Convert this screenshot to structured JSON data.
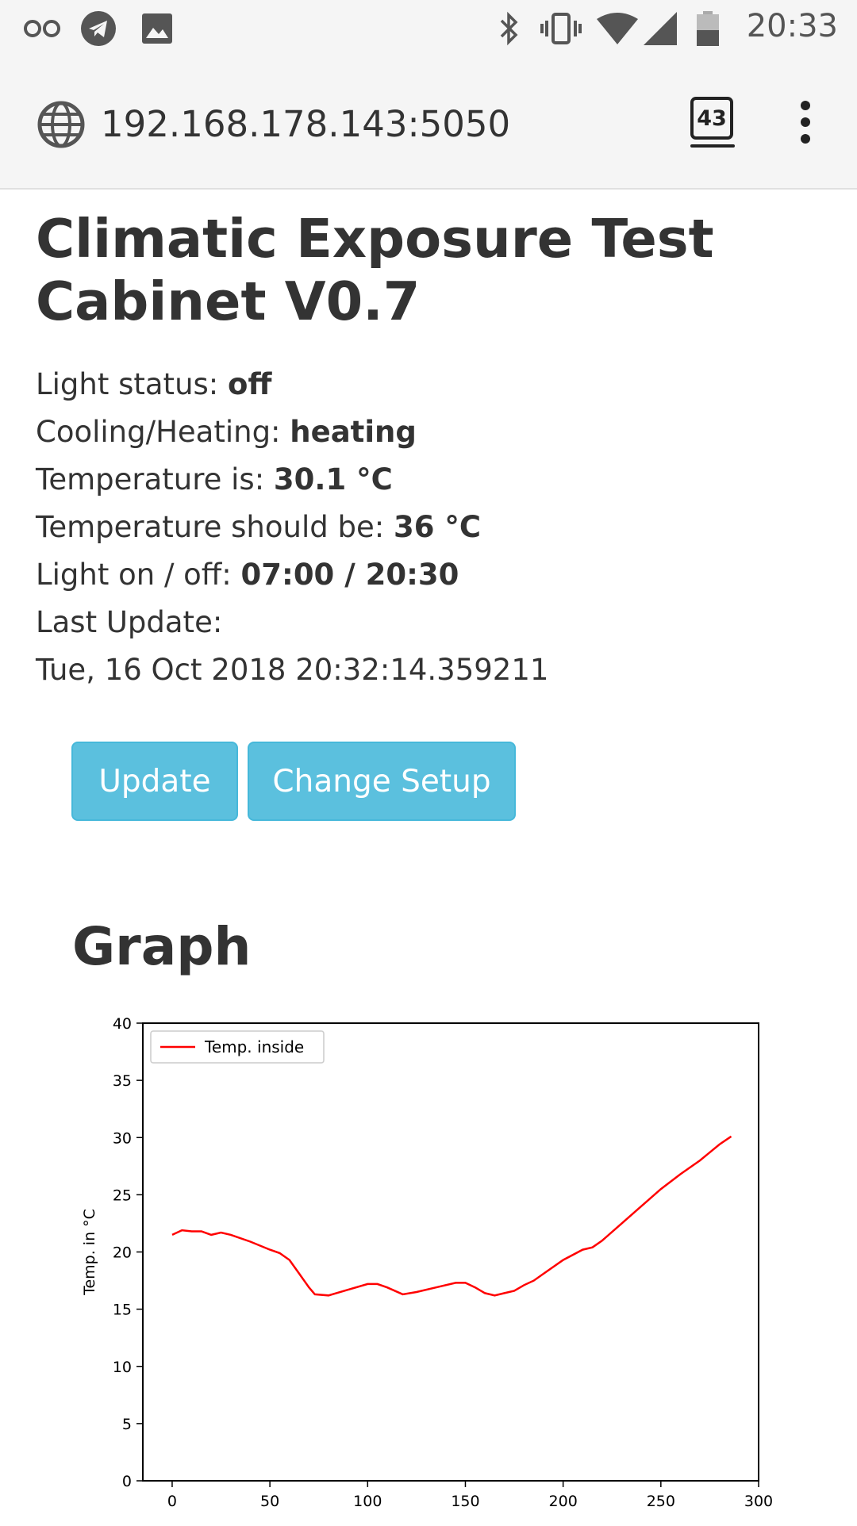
{
  "status_bar": {
    "time": "20:33",
    "icons": [
      "infinity-icon",
      "telegram-icon",
      "image-icon",
      "bluetooth-icon",
      "vibrate-icon",
      "wifi-icon",
      "signal-icon",
      "battery-icon"
    ]
  },
  "browser": {
    "url": "192.168.178.143:5050",
    "tab_count": "43"
  },
  "page": {
    "title": "Climatic Exposure Test Cabinet V0.7",
    "light_status_label": "Light status: ",
    "light_status_value": "off",
    "cooling_heating_label": "Cooling/Heating: ",
    "cooling_heating_value": "heating",
    "temp_is_label": "Temperature is: ",
    "temp_is_value": "30.1 °C",
    "temp_should_label": "Temperature should be: ",
    "temp_should_value": "36 °C",
    "light_onoff_label": "Light on / off: ",
    "light_onoff_value": "07:00 / 20:30",
    "last_update_label": "Last Update:",
    "last_update_value": "Tue, 16 Oct 2018 20:32:14.359211",
    "update_button": "Update",
    "change_setup_button": "Change Setup",
    "graph_heading": "Graph"
  },
  "colors": {
    "button": "#5bc0de",
    "series": "#ff0000"
  },
  "chart_data": {
    "type": "line",
    "title": "",
    "xlabel": "",
    "ylabel": "Temp. in °C",
    "xlim": [
      -15,
      300
    ],
    "ylim": [
      0,
      40
    ],
    "xticks": [
      0,
      50,
      100,
      150,
      200,
      250,
      300
    ],
    "yticks": [
      0,
      5,
      10,
      15,
      20,
      25,
      30,
      35,
      40
    ],
    "legend": "top-left",
    "grid": false,
    "series": [
      {
        "name": "Temp. inside",
        "x": [
          0,
          5,
          10,
          15,
          20,
          25,
          30,
          40,
          50,
          55,
          60,
          65,
          70,
          73,
          80,
          90,
          100,
          105,
          110,
          118,
          125,
          135,
          145,
          150,
          155,
          160,
          165,
          170,
          175,
          180,
          185,
          190,
          200,
          210,
          215,
          220,
          230,
          240,
          250,
          260,
          270,
          280,
          286
        ],
        "values": [
          21.5,
          21.9,
          21.8,
          21.8,
          21.5,
          21.7,
          21.5,
          20.9,
          20.2,
          19.9,
          19.3,
          18.1,
          16.9,
          16.3,
          16.2,
          16.7,
          17.2,
          17.2,
          16.9,
          16.3,
          16.5,
          16.9,
          17.3,
          17.3,
          16.9,
          16.4,
          16.2,
          16.4,
          16.6,
          17.1,
          17.5,
          18.1,
          19.3,
          20.2,
          20.4,
          21.0,
          22.5,
          24.0,
          25.5,
          26.8,
          28.0,
          29.4,
          30.1
        ]
      }
    ]
  }
}
